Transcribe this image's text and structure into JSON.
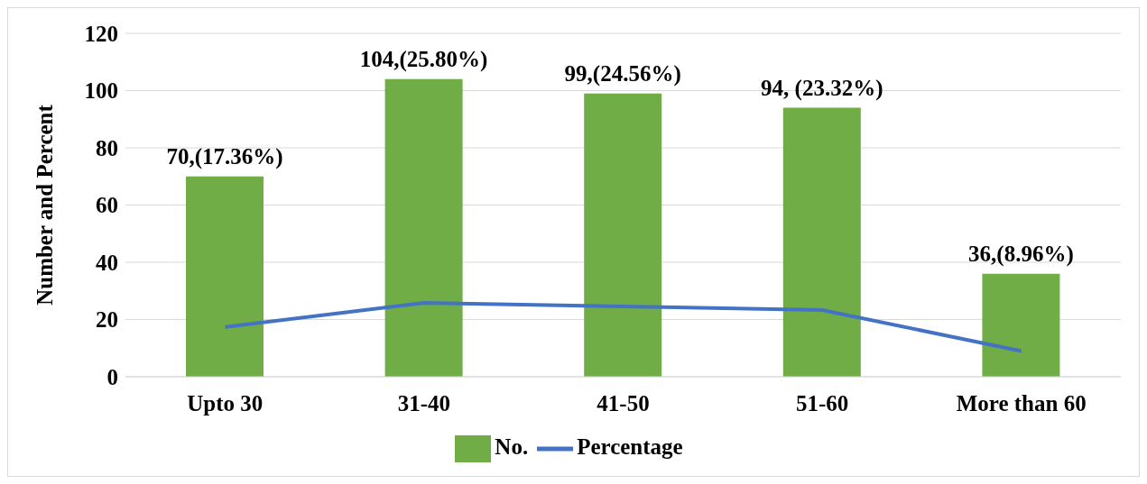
{
  "chart_data": {
    "type": "bar",
    "ylabel": "Number and Percent",
    "categories": [
      "Upto 30",
      "31-40",
      "41-50",
      "51-60",
      "More than 60"
    ],
    "series": [
      {
        "name": "No.",
        "color": "#70ad47",
        "values": [
          70,
          104,
          99,
          94,
          36
        ],
        "value_labels": [
          "70,(17.36%)",
          "104,(25.80%)",
          "99,(24.56%)",
          "94, (23.32%)",
          "36,(8.96%)"
        ]
      },
      {
        "name": "Percentage",
        "type": "line",
        "color": "#4472c4",
        "values": [
          17.36,
          25.8,
          24.56,
          23.32,
          8.96
        ]
      }
    ],
    "ylim": [
      0,
      120
    ],
    "yticks": [
      0,
      20,
      40,
      60,
      80,
      100,
      120
    ],
    "grid": "y",
    "legend": "bottom",
    "marker": "none"
  }
}
